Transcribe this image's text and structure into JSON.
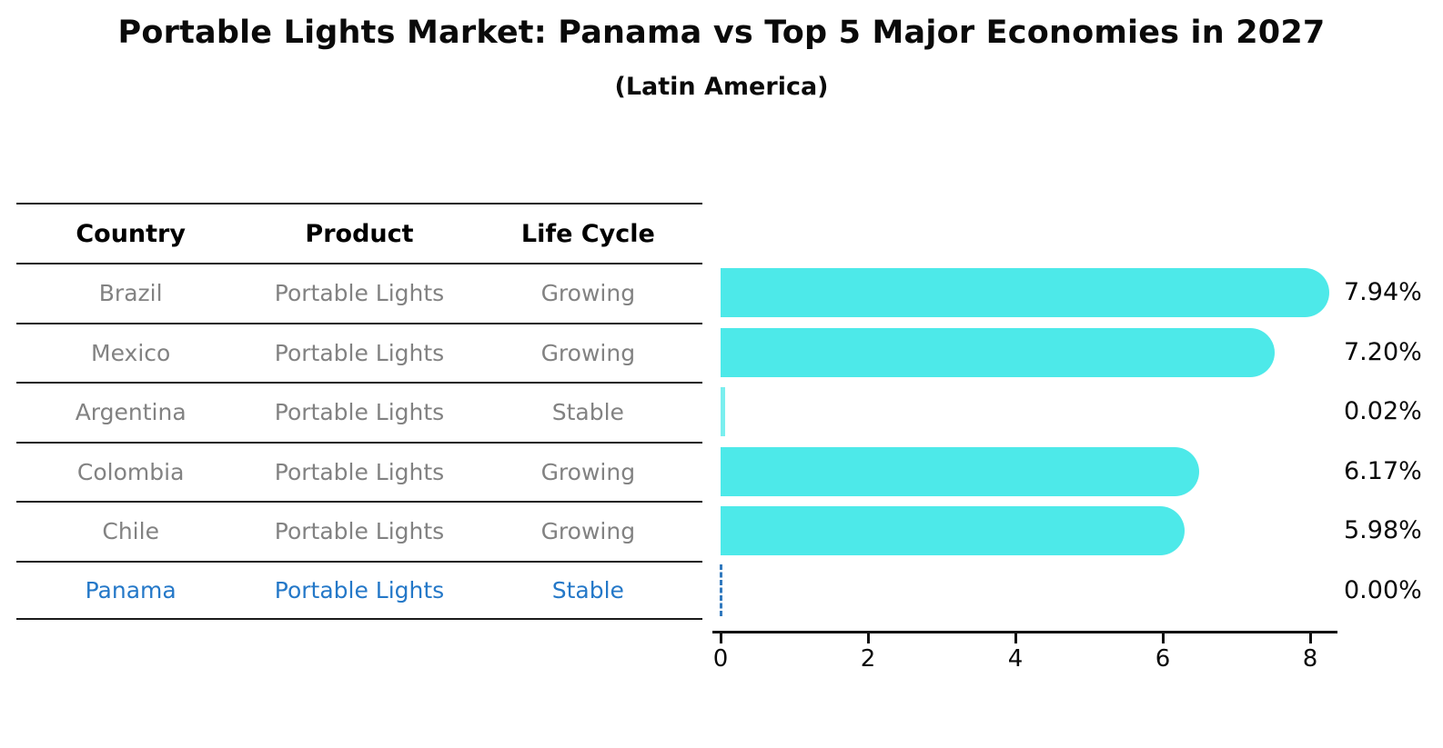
{
  "header": {
    "title": "Portable Lights Market: Panama vs Top 5 Major Economies in 2027",
    "subtitle": "(Latin America)"
  },
  "table": {
    "headers": [
      "Country",
      "Product",
      "Life Cycle"
    ],
    "rows": [
      {
        "country": "Brazil",
        "product": "Portable Lights",
        "life_cycle": "Growing",
        "highlight": false
      },
      {
        "country": "Mexico",
        "product": "Portable Lights",
        "life_cycle": "Growing",
        "highlight": false
      },
      {
        "country": "Argentina",
        "product": "Portable Lights",
        "life_cycle": "Stable",
        "highlight": false
      },
      {
        "country": "Colombia",
        "product": "Portable Lights",
        "life_cycle": "Growing",
        "highlight": false
      },
      {
        "country": "Chile",
        "product": "Portable Lights",
        "life_cycle": "Growing",
        "highlight": false
      },
      {
        "country": "Panama",
        "product": "Portable Lights",
        "life_cycle": "Stable",
        "highlight": true
      }
    ]
  },
  "chart_data": {
    "type": "bar",
    "orientation": "horizontal",
    "title": "Portable Lights Market: Panama vs Top 5 Major Economies in 2027",
    "subtitle": "(Latin America)",
    "categories": [
      "Brazil",
      "Mexico",
      "Argentina",
      "Colombia",
      "Chile",
      "Panama"
    ],
    "values": [
      7.94,
      7.2,
      0.02,
      6.17,
      5.98,
      0.0
    ],
    "value_labels": [
      "7.94%",
      "7.20%",
      "0.02%",
      "6.17%",
      "5.98%",
      "0.00%"
    ],
    "x_ticks": [
      "0",
      "2",
      "4",
      "6",
      "8"
    ],
    "x_tick_values": [
      0,
      2,
      4,
      6,
      8
    ],
    "xlim": [
      0,
      8.4
    ],
    "grid": false,
    "legend": "none",
    "bar_color": "#4DE9E9",
    "highlight_color": "#2478C8",
    "highlight_index": 5,
    "highlight_style": "dashed zero line for Panama (0.00%)"
  }
}
